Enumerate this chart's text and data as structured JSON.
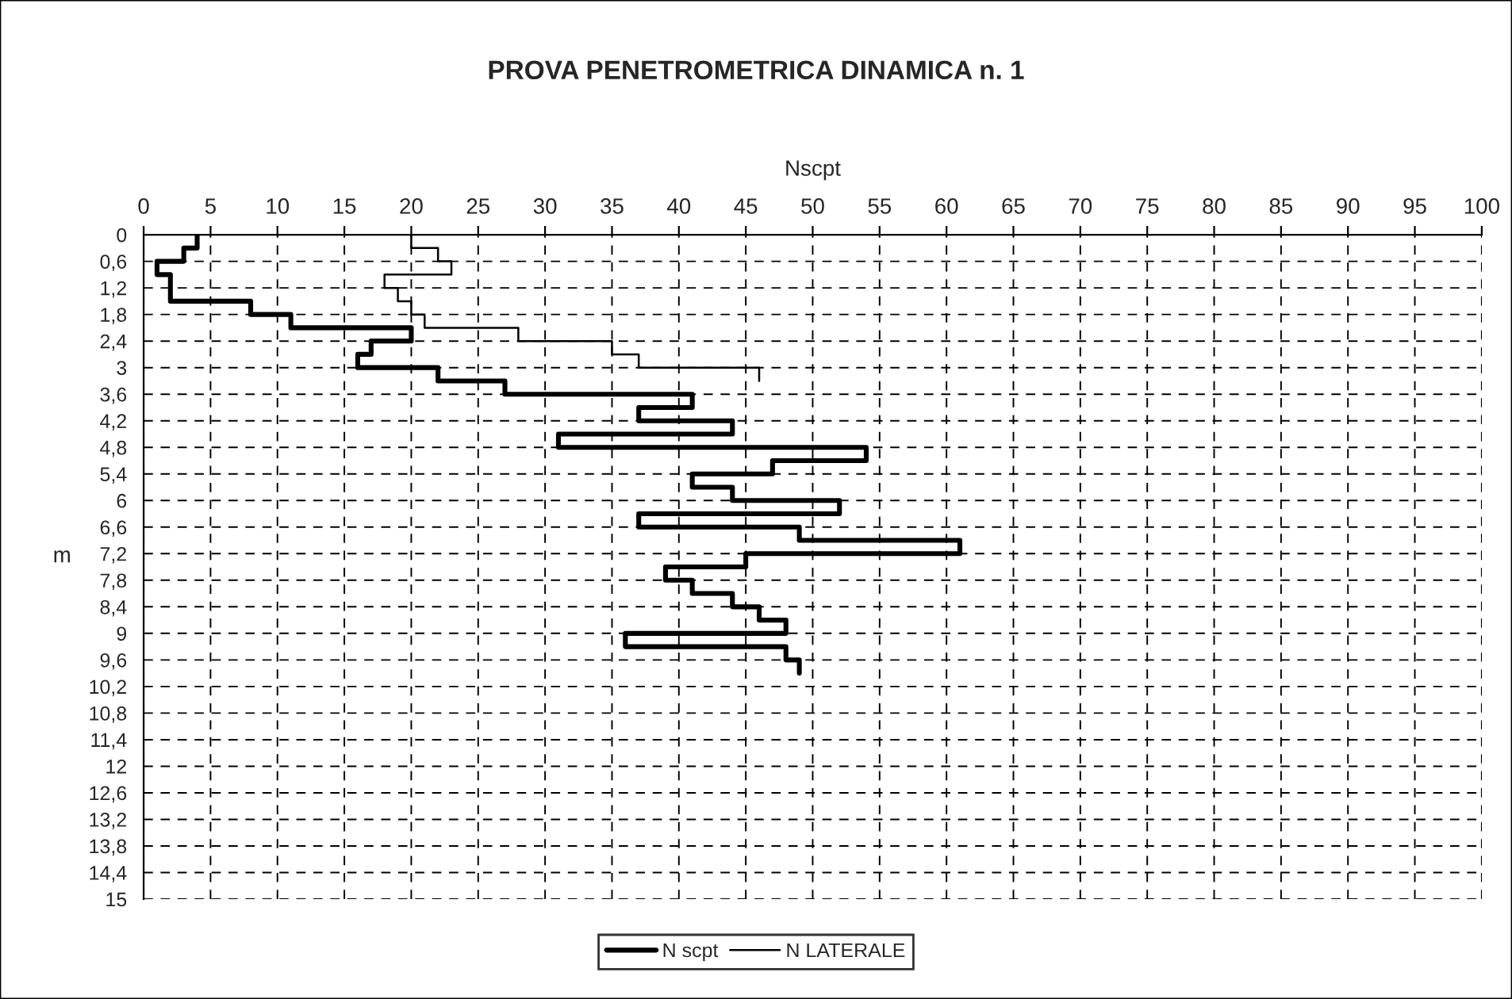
{
  "chart_data": {
    "type": "step",
    "orientation": "horizontal",
    "title": "PROVA PENETROMETRICA DINAMICA n. 1",
    "xlabel": "Nscpt",
    "ylabel": "m",
    "series": [
      {
        "name": "N scpt",
        "color": "#000000",
        "x": [
          0,
          0.3,
          0.6,
          0.9,
          1.2,
          1.5,
          1.8,
          2.1,
          2.4,
          2.7,
          3.0,
          3.3,
          3.6,
          3.9,
          4.2,
          4.5,
          4.8,
          5.1,
          5.4,
          5.7,
          6.0,
          6.3,
          6.6,
          6.9,
          7.2,
          7.5,
          7.8,
          8.1,
          8.4,
          8.7,
          9.0,
          9.3,
          9.6,
          9.9
        ],
        "values": [
          4,
          3,
          1,
          2,
          2,
          8,
          11,
          20,
          17,
          16,
          22,
          27,
          41,
          37,
          44,
          31,
          54,
          47,
          41,
          44,
          52,
          37,
          49,
          61,
          45,
          39,
          41,
          44,
          46,
          48,
          36,
          48,
          49,
          49
        ]
      },
      {
        "name": "N LATERALE",
        "color": "#000000",
        "x": [
          0,
          0.3,
          0.6,
          0.9,
          1.2,
          1.5,
          1.8,
          2.1,
          2.4,
          2.7,
          3.0,
          3.3
        ],
        "values": [
          20,
          22,
          23,
          18,
          19,
          20,
          21,
          28,
          35,
          37,
          46,
          46
        ]
      }
    ],
    "xlim": [
      0,
      100
    ],
    "xticks": [
      0,
      5,
      10,
      15,
      20,
      25,
      30,
      35,
      40,
      45,
      50,
      55,
      60,
      65,
      70,
      75,
      80,
      85,
      90,
      95,
      100
    ],
    "ylim": [
      15,
      0
    ],
    "yticks": [
      0,
      {
        "value": 0.6,
        "label": "0,6"
      },
      {
        "value": 1.2,
        "label": "1,2"
      },
      {
        "value": 1.8,
        "label": "1,8"
      },
      {
        "value": 2.4,
        "label": "2,4"
      },
      3,
      {
        "value": 3.6,
        "label": "3,6"
      },
      {
        "value": 4.2,
        "label": "4,2"
      },
      {
        "value": 4.8,
        "label": "4,8"
      },
      {
        "value": 5.4,
        "label": "5,4"
      },
      6,
      {
        "value": 6.6,
        "label": "6,6"
      },
      {
        "value": 7.2,
        "label": "7,2"
      },
      {
        "value": 7.8,
        "label": "7,8"
      },
      {
        "value": 8.4,
        "label": "8,4"
      },
      9,
      {
        "value": 9.6,
        "label": "9,6"
      },
      {
        "value": 10.2,
        "label": "10,2"
      },
      {
        "value": 10.8,
        "label": "10,8"
      },
      {
        "value": 11.4,
        "label": "11,4"
      },
      12,
      {
        "value": 12.6,
        "label": "12,6"
      },
      {
        "value": 13.2,
        "label": "13,2"
      },
      {
        "value": 13.8,
        "label": "13,8"
      },
      {
        "value": 14.4,
        "label": "14,4"
      },
      15
    ],
    "grid": true,
    "legend": "bottom"
  }
}
